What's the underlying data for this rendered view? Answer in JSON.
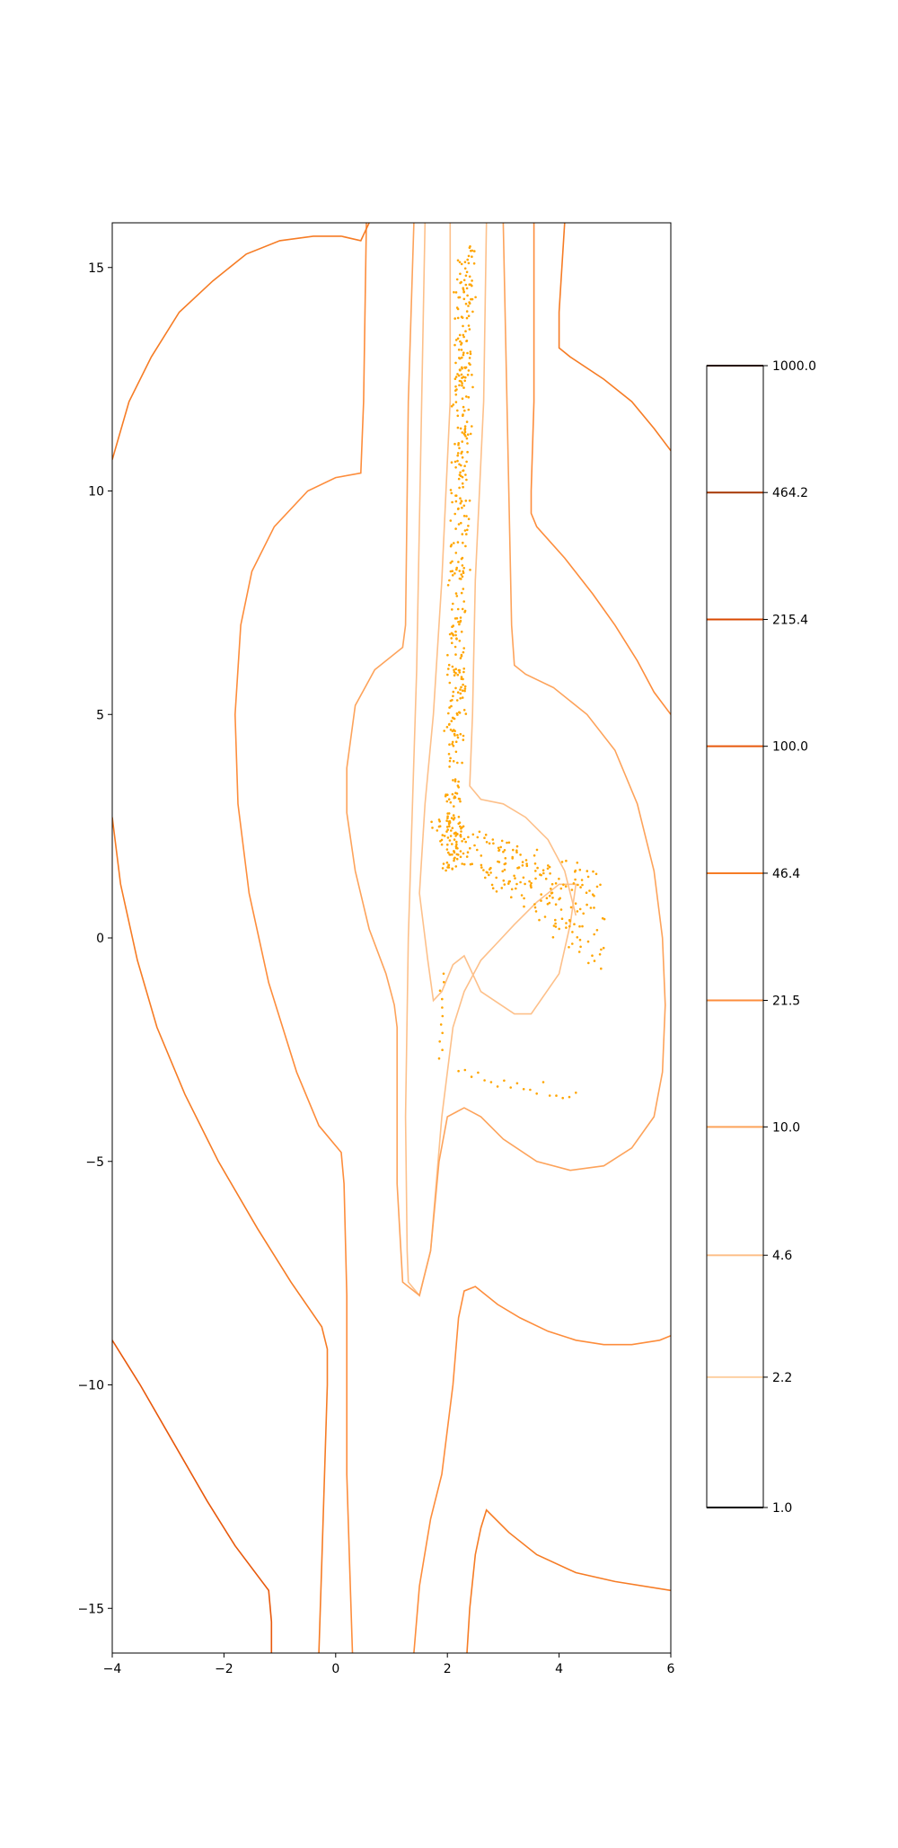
{
  "chart_data": {
    "type": "contour",
    "title": "",
    "xlabel": "",
    "ylabel": "",
    "xlim": [
      -4,
      6
    ],
    "ylim": [
      -16,
      16
    ],
    "grid": false,
    "x_ticks": [
      {
        "value": -4,
        "label": "−4"
      },
      {
        "value": -2,
        "label": "−2"
      },
      {
        "value": 0,
        "label": "0"
      },
      {
        "value": 2,
        "label": "2"
      },
      {
        "value": 4,
        "label": "4"
      },
      {
        "value": 6,
        "label": "6"
      }
    ],
    "y_ticks": [
      {
        "value": -15,
        "label": "−15"
      },
      {
        "value": -10,
        "label": "−10"
      },
      {
        "value": -5,
        "label": "−5"
      },
      {
        "value": 0,
        "label": "0"
      },
      {
        "value": 5,
        "label": "5"
      },
      {
        "value": 10,
        "label": "10"
      },
      {
        "value": 15,
        "label": "15"
      }
    ],
    "colorbar": {
      "scale": "log",
      "range": [
        1.0,
        1000.0
      ],
      "levels": [
        {
          "value": 1.0,
          "label": "1.0",
          "color": "#000000"
        },
        {
          "value": 2.2,
          "label": "2.2",
          "color": "#fdd0a2"
        },
        {
          "value": 4.6,
          "label": "4.6",
          "color": "#fdc08a"
        },
        {
          "value": 10.0,
          "label": "10.0",
          "color": "#fda35b"
        },
        {
          "value": 21.5,
          "label": "21.5",
          "color": "#fd8d3c"
        },
        {
          "value": 46.4,
          "label": "46.4",
          "color": "#f67c25"
        },
        {
          "value": 100.0,
          "label": "100.0",
          "color": "#e8590c"
        },
        {
          "value": 215.4,
          "label": "215.4",
          "color": "#d94801"
        },
        {
          "value": 464.2,
          "label": "464.2",
          "color": "#a63603"
        },
        {
          "value": 1000.0,
          "label": "1000.0",
          "color": "#4a1300"
        }
      ]
    },
    "contours": [
      {
        "level": 4.6,
        "color": "#fdc08a",
        "points": [
          [
            1.6,
            16
          ],
          [
            1.45,
            6
          ],
          [
            1.3,
            0
          ],
          [
            1.25,
            -4
          ],
          [
            1.28,
            -7
          ],
          [
            1.3,
            -7.7
          ],
          [
            1.5,
            -8
          ],
          [
            1.7,
            -7
          ],
          [
            1.9,
            -4
          ],
          [
            2.1,
            -2
          ],
          [
            2.3,
            -1.2
          ],
          [
            2.6,
            -0.5
          ],
          [
            2.9,
            -0.1
          ],
          [
            3.2,
            0.3
          ],
          [
            3.6,
            0.8
          ],
          [
            4.0,
            1.2
          ],
          [
            4.3,
            1.2
          ],
          [
            4.2,
            0.3
          ],
          [
            4.0,
            -0.8
          ],
          [
            3.5,
            -1.7
          ],
          [
            3.2,
            -1.7
          ],
          [
            2.6,
            -1.2
          ],
          [
            2.3,
            -0.4
          ],
          [
            2.1,
            -0.6
          ],
          [
            1.9,
            -1.2
          ],
          [
            1.75,
            -1.4
          ],
          [
            1.65,
            -0.5
          ],
          [
            1.5,
            1
          ],
          [
            1.6,
            3
          ],
          [
            1.75,
            5
          ],
          [
            1.9,
            8
          ],
          [
            2.05,
            12
          ],
          [
            2.05,
            16
          ]
        ]
      },
      {
        "level": 4.6,
        "color": "#fdc08a",
        "points": [
          [
            2.7,
            16
          ],
          [
            2.65,
            12
          ],
          [
            2.5,
            8
          ],
          [
            2.45,
            5
          ],
          [
            2.4,
            3.4
          ],
          [
            2.6,
            3.1
          ],
          [
            3.0,
            3.0
          ],
          [
            3.4,
            2.7
          ],
          [
            3.8,
            2.2
          ],
          [
            4.1,
            1.5
          ],
          [
            4.3,
            0.5
          ]
        ]
      },
      {
        "level": 10.0,
        "color": "#fda35b",
        "points": [
          [
            1.4,
            16
          ],
          [
            1.3,
            12
          ],
          [
            1.25,
            7
          ],
          [
            1.2,
            6.5
          ],
          [
            0.7,
            6.0
          ],
          [
            0.35,
            5.2
          ],
          [
            0.2,
            3.8
          ],
          [
            0.2,
            2.8
          ],
          [
            0.35,
            1.5
          ],
          [
            0.6,
            0.2
          ],
          [
            0.9,
            -0.8
          ],
          [
            1.05,
            -1.5
          ],
          [
            1.1,
            -2
          ],
          [
            1.1,
            -5.5
          ],
          [
            1.2,
            -7.7
          ],
          [
            1.5,
            -8
          ],
          [
            1.7,
            -7
          ],
          [
            1.85,
            -5
          ],
          [
            2.0,
            -4
          ],
          [
            2.3,
            -3.8
          ],
          [
            2.6,
            -4
          ],
          [
            3.0,
            -4.5
          ],
          [
            3.6,
            -5
          ],
          [
            4.2,
            -5.2
          ],
          [
            4.8,
            -5.1
          ],
          [
            5.3,
            -4.7
          ],
          [
            5.7,
            -4
          ],
          [
            5.85,
            -3
          ],
          [
            5.9,
            -1.5
          ],
          [
            5.85,
            0
          ],
          [
            5.7,
            1.5
          ],
          [
            5.4,
            3
          ],
          [
            5.0,
            4.2
          ],
          [
            4.5,
            5.0
          ],
          [
            3.9,
            5.6
          ],
          [
            3.4,
            5.9
          ],
          [
            3.2,
            6.1
          ],
          [
            3.15,
            7
          ],
          [
            3.1,
            10
          ],
          [
            3.05,
            13
          ],
          [
            3.0,
            16
          ]
        ]
      },
      {
        "level": 21.5,
        "color": "#fd8d3c",
        "points": [
          [
            0.55,
            16
          ],
          [
            0.5,
            12
          ],
          [
            0.45,
            10.4
          ],
          [
            0,
            10.3
          ],
          [
            -0.5,
            10
          ],
          [
            -1.1,
            9.2
          ],
          [
            -1.5,
            8.2
          ],
          [
            -1.7,
            7
          ],
          [
            -1.8,
            5
          ],
          [
            -1.75,
            3
          ],
          [
            -1.55,
            1
          ],
          [
            -1.2,
            -1
          ],
          [
            -0.7,
            -3
          ],
          [
            -0.3,
            -4.2
          ],
          [
            0.1,
            -4.8
          ],
          [
            0.15,
            -5.5
          ],
          [
            0.2,
            -8
          ],
          [
            0.2,
            -12
          ],
          [
            0.25,
            -14
          ],
          [
            0.3,
            -16
          ]
        ]
      },
      {
        "level": 21.5,
        "color": "#fd8d3c",
        "points": [
          [
            3.55,
            16
          ],
          [
            3.55,
            12
          ],
          [
            3.5,
            10
          ],
          [
            3.5,
            9.5
          ],
          [
            3.6,
            9.2
          ],
          [
            4.1,
            8.5
          ],
          [
            4.6,
            7.7
          ],
          [
            5.0,
            7
          ],
          [
            5.4,
            6.2
          ],
          [
            5.7,
            5.5
          ],
          [
            6.0,
            5.0
          ]
        ]
      },
      {
        "level": 21.5,
        "color": "#fd8d3c",
        "points": [
          [
            1.4,
            -16
          ],
          [
            1.5,
            -14.5
          ],
          [
            1.7,
            -13
          ],
          [
            1.9,
            -12
          ],
          [
            2.1,
            -10
          ],
          [
            2.2,
            -8.5
          ],
          [
            2.3,
            -7.9
          ],
          [
            2.5,
            -7.8
          ],
          [
            2.9,
            -8.2
          ],
          [
            3.3,
            -8.5
          ],
          [
            3.8,
            -8.8
          ],
          [
            4.3,
            -9.0
          ],
          [
            4.8,
            -9.1
          ],
          [
            5.3,
            -9.1
          ],
          [
            5.8,
            -9.0
          ],
          [
            6.0,
            -8.9
          ]
        ]
      },
      {
        "level": 46.4,
        "color": "#f67c25",
        "points": [
          [
            -4,
            10.7
          ],
          [
            -3.7,
            12
          ],
          [
            -3.3,
            13
          ],
          [
            -2.8,
            14
          ],
          [
            -2.2,
            14.7
          ],
          [
            -1.6,
            15.3
          ],
          [
            -1,
            15.6
          ],
          [
            -0.4,
            15.7
          ],
          [
            0.1,
            15.7
          ],
          [
            0.45,
            15.6
          ],
          [
            0.6,
            16
          ]
        ]
      },
      {
        "level": 46.4,
        "color": "#f67c25",
        "points": [
          [
            -4,
            2.7
          ],
          [
            -3.85,
            1.2
          ],
          [
            -3.55,
            -0.5
          ],
          [
            -3.2,
            -2
          ],
          [
            -2.7,
            -3.5
          ],
          [
            -2.1,
            -5
          ],
          [
            -1.4,
            -6.5
          ],
          [
            -0.8,
            -7.7
          ],
          [
            -0.25,
            -8.7
          ],
          [
            -0.15,
            -9.2
          ],
          [
            -0.15,
            -10
          ],
          [
            -0.2,
            -12
          ],
          [
            -0.25,
            -14
          ],
          [
            -0.3,
            -16
          ]
        ]
      },
      {
        "level": 46.4,
        "color": "#f67c25",
        "points": [
          [
            4.1,
            16
          ],
          [
            4.0,
            14
          ],
          [
            4.0,
            13.2
          ],
          [
            4.2,
            13
          ],
          [
            4.8,
            12.5
          ],
          [
            5.3,
            12
          ],
          [
            5.7,
            11.4
          ],
          [
            6.0,
            10.9
          ]
        ]
      },
      {
        "level": 46.4,
        "color": "#f67c25",
        "points": [
          [
            2.35,
            -16
          ],
          [
            2.4,
            -15
          ],
          [
            2.5,
            -13.8
          ],
          [
            2.6,
            -13.2
          ],
          [
            2.7,
            -12.8
          ],
          [
            3.1,
            -13.3
          ],
          [
            3.6,
            -13.8
          ],
          [
            4.3,
            -14.2
          ],
          [
            5.0,
            -14.4
          ],
          [
            6.0,
            -14.6
          ]
        ]
      },
      {
        "level": 100.0,
        "color": "#e8590c",
        "points": [
          [
            -4,
            -9.0
          ],
          [
            -3.5,
            -10
          ],
          [
            -2.9,
            -11.3
          ],
          [
            -2.3,
            -12.6
          ],
          [
            -1.8,
            -13.6
          ],
          [
            -1.2,
            -14.6
          ],
          [
            -1.15,
            -15.3
          ],
          [
            -1.15,
            -16
          ]
        ]
      }
    ],
    "scatter": {
      "color": "#ffa500",
      "clusters": [
        {
          "x_center": 2.2,
          "x_width": 0.35,
          "y_from": 1.5,
          "y_to": 15.5,
          "count": 420
        },
        {
          "x_start": 1.8,
          "x_end": 4.8,
          "y_start": 2.5,
          "y_end": 1.3,
          "spread": 1.8,
          "count": 240
        },
        {
          "x_start": 1.9,
          "x_end": 4.3,
          "y_start": -2.5,
          "y_end": -3.7,
          "spread": 0.35,
          "count": 30
        }
      ]
    }
  }
}
